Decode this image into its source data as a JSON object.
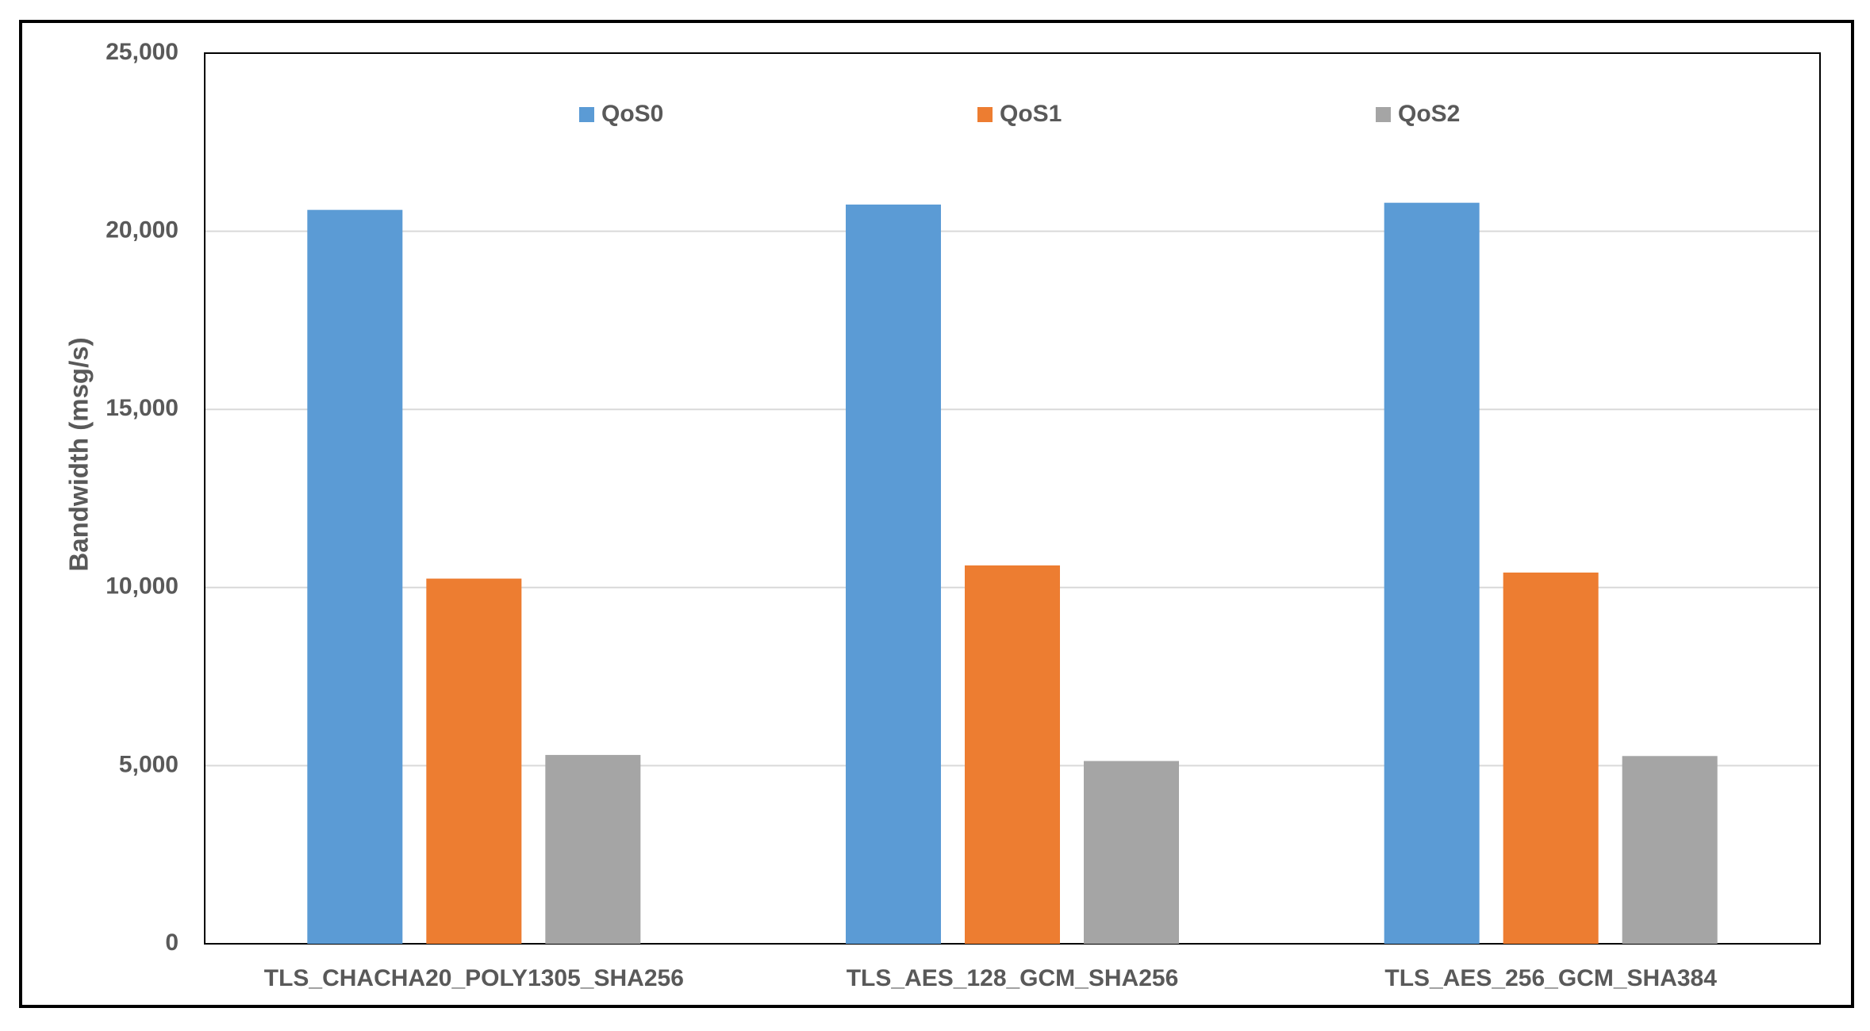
{
  "chart_data": {
    "type": "bar",
    "title": "",
    "xlabel": "",
    "ylabel": "Bandwidth (msg/s)",
    "categories": [
      "TLS_CHACHA20_POLY1305_SHA256",
      "TLS_AES_128_GCM_SHA256",
      "TLS_AES_256_GCM_SHA384"
    ],
    "series": [
      {
        "name": "QoS0",
        "color": "#5B9BD5",
        "values": [
          20600,
          20750,
          20800
        ]
      },
      {
        "name": "QoS1",
        "color": "#ED7D31",
        "values": [
          10250,
          10620,
          10420
        ]
      },
      {
        "name": "QoS2",
        "color": "#A5A5A5",
        "values": [
          5300,
          5130,
          5270
        ]
      }
    ],
    "ylim": [
      0,
      25000
    ],
    "yticks": [
      "0",
      "5,000",
      "10,000",
      "15,000",
      "20,000",
      "25,000"
    ],
    "grid": true,
    "legend_position": "top-inside"
  }
}
